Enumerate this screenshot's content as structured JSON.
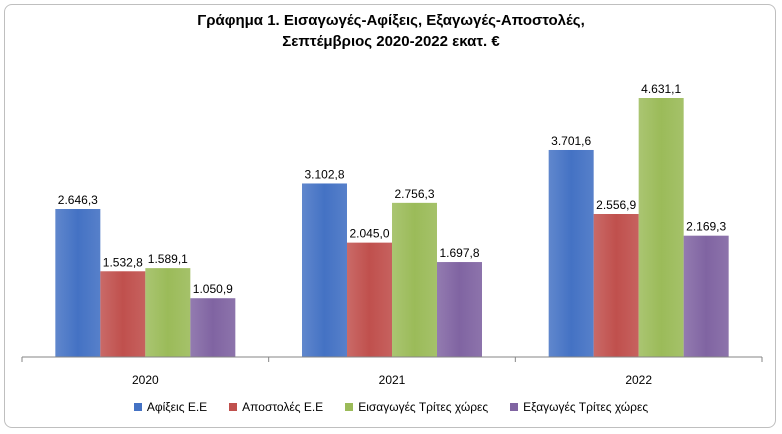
{
  "chart_data": {
    "type": "bar",
    "title_line1": "Γράφημα 1. Εισαγωγές-Αφίξεις, Εξαγωγές-Αποστολές,",
    "title_line2": "Σεπτέμβριος 2020-2022 εκατ. €",
    "categories": [
      "2020",
      "2021",
      "2022"
    ],
    "series": [
      {
        "name": "Αφίξεις Ε.Ε",
        "values": [
          2646.3,
          3102.8,
          3701.6
        ],
        "labels": [
          "2.646,3",
          "3.102,8",
          "3.701,6"
        ],
        "color": "#4472c4"
      },
      {
        "name": "Αποστολές  Ε.Ε",
        "values": [
          1532.8,
          2045.0,
          2556.9
        ],
        "labels": [
          "1.532,8",
          "2.045,0",
          "2.556,9"
        ],
        "color": "#c0504d"
      },
      {
        "name": "Εισαγωγές Τρίτες χώρες",
        "values": [
          1589.1,
          2756.3,
          4631.1
        ],
        "labels": [
          "1.589,1",
          "2.756,3",
          "4.631,1"
        ],
        "color": "#9bbb59"
      },
      {
        "name": "Εξαγωγές Τρίτες χώρες",
        "values": [
          1050.9,
          1697.8,
          2169.3
        ],
        "labels": [
          "1.050,9",
          "1.697,8",
          "2.169,3"
        ],
        "color": "#8064a2"
      }
    ],
    "ylim": [
      0,
      4631.1
    ],
    "grid": false,
    "legend_position": "bottom"
  }
}
